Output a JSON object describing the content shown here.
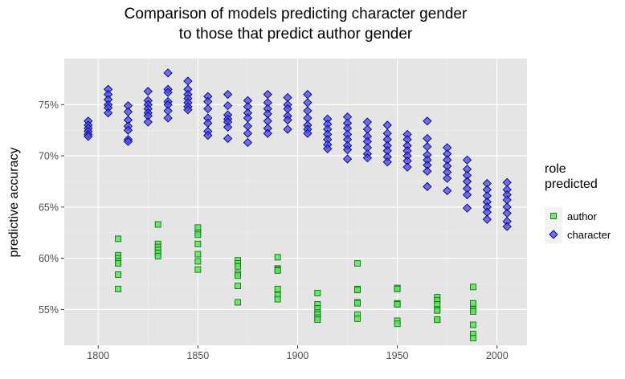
{
  "chart_data": {
    "type": "scatter",
    "title_lines": [
      "Comparison of models predicting character gender",
      "to those that predict author gender"
    ],
    "xlabel": "",
    "ylabel": "predictive accuracy",
    "xlim": [
      1783,
      2015
    ],
    "ylim": [
      51.5,
      79.5
    ],
    "x_ticks": [
      1800,
      1850,
      1900,
      1950,
      2000
    ],
    "y_ticks": [
      55,
      60,
      65,
      70,
      75
    ],
    "y_tick_labels": [
      "55%",
      "60%",
      "65%",
      "70%",
      "75%"
    ],
    "grid": true,
    "legend": {
      "title_lines": [
        "role",
        "predicted"
      ],
      "placement": "right"
    },
    "series": [
      {
        "name": "author",
        "marker": "square",
        "color": "#56e856",
        "edge": "#1a6b1a",
        "points": [
          [
            1810,
            61.9
          ],
          [
            1810,
            60.3
          ],
          [
            1810,
            60.0
          ],
          [
            1810,
            59.7
          ],
          [
            1810,
            59.5
          ],
          [
            1810,
            58.4
          ],
          [
            1810,
            57.0
          ],
          [
            1830,
            63.3
          ],
          [
            1830,
            61.4
          ],
          [
            1830,
            61.1
          ],
          [
            1830,
            60.8
          ],
          [
            1830,
            60.5
          ],
          [
            1830,
            60.2
          ],
          [
            1850,
            63.0
          ],
          [
            1850,
            62.5
          ],
          [
            1850,
            62.3
          ],
          [
            1850,
            61.4
          ],
          [
            1850,
            60.4
          ],
          [
            1850,
            59.7
          ],
          [
            1850,
            58.9
          ],
          [
            1870,
            59.8
          ],
          [
            1870,
            59.5
          ],
          [
            1870,
            59.2
          ],
          [
            1870,
            58.5
          ],
          [
            1870,
            58.3
          ],
          [
            1870,
            57.3
          ],
          [
            1870,
            55.7
          ],
          [
            1890,
            60.1
          ],
          [
            1890,
            59.0
          ],
          [
            1890,
            58.9
          ],
          [
            1890,
            58.8
          ],
          [
            1890,
            57.0
          ],
          [
            1890,
            56.4
          ],
          [
            1890,
            56.0
          ],
          [
            1910,
            56.6
          ],
          [
            1910,
            55.5
          ],
          [
            1910,
            55.1
          ],
          [
            1910,
            54.7
          ],
          [
            1910,
            54.5
          ],
          [
            1910,
            54.2
          ],
          [
            1910,
            54.0
          ],
          [
            1930,
            59.5
          ],
          [
            1930,
            57.0
          ],
          [
            1930,
            56.9
          ],
          [
            1930,
            55.7
          ],
          [
            1930,
            55.6
          ],
          [
            1930,
            54.5
          ],
          [
            1930,
            54.1
          ],
          [
            1950,
            57.1
          ],
          [
            1950,
            57.0
          ],
          [
            1950,
            55.6
          ],
          [
            1950,
            55.5
          ],
          [
            1950,
            55.5
          ],
          [
            1950,
            53.9
          ],
          [
            1950,
            53.6
          ],
          [
            1970,
            56.2
          ],
          [
            1970,
            55.9
          ],
          [
            1970,
            55.5
          ],
          [
            1970,
            55.0
          ],
          [
            1970,
            54.9
          ],
          [
            1970,
            54.0
          ],
          [
            1970,
            54.0
          ],
          [
            1988,
            57.2
          ],
          [
            1988,
            55.6
          ],
          [
            1988,
            55.0
          ],
          [
            1988,
            54.8
          ],
          [
            1988,
            53.5
          ],
          [
            1988,
            52.6
          ],
          [
            1988,
            52.2
          ]
        ]
      },
      {
        "name": "character",
        "marker": "diamond",
        "color": "#4b4bf0",
        "edge": "#00007a",
        "points": [
          [
            1795,
            73.4
          ],
          [
            1795,
            73.0
          ],
          [
            1795,
            72.7
          ],
          [
            1795,
            72.4
          ],
          [
            1795,
            72.1
          ],
          [
            1795,
            71.9
          ],
          [
            1805,
            76.5
          ],
          [
            1805,
            76.0
          ],
          [
            1805,
            75.5
          ],
          [
            1805,
            75.0
          ],
          [
            1805,
            74.7
          ],
          [
            1805,
            74.2
          ],
          [
            1815,
            74.9
          ],
          [
            1815,
            74.3
          ],
          [
            1815,
            73.5
          ],
          [
            1815,
            72.9
          ],
          [
            1815,
            72.5
          ],
          [
            1815,
            71.6
          ],
          [
            1815,
            71.4
          ],
          [
            1825,
            76.3
          ],
          [
            1825,
            75.4
          ],
          [
            1825,
            75.0
          ],
          [
            1825,
            74.6
          ],
          [
            1825,
            74.2
          ],
          [
            1825,
            73.9
          ],
          [
            1825,
            73.3
          ],
          [
            1835,
            78.1
          ],
          [
            1835,
            76.5
          ],
          [
            1835,
            76.2
          ],
          [
            1835,
            75.3
          ],
          [
            1835,
            75.0
          ],
          [
            1835,
            74.4
          ],
          [
            1835,
            73.7
          ],
          [
            1845,
            77.3
          ],
          [
            1845,
            76.5
          ],
          [
            1845,
            76.0
          ],
          [
            1845,
            75.6
          ],
          [
            1845,
            75.2
          ],
          [
            1845,
            74.8
          ],
          [
            1845,
            74.5
          ],
          [
            1855,
            75.8
          ],
          [
            1855,
            75.3
          ],
          [
            1855,
            74.6
          ],
          [
            1855,
            73.7
          ],
          [
            1855,
            73.2
          ],
          [
            1855,
            72.4
          ],
          [
            1855,
            72.0
          ],
          [
            1865,
            76.0
          ],
          [
            1865,
            74.9
          ],
          [
            1865,
            74.0
          ],
          [
            1865,
            73.6
          ],
          [
            1865,
            73.3
          ],
          [
            1865,
            72.8
          ],
          [
            1865,
            71.7
          ],
          [
            1875,
            75.4
          ],
          [
            1875,
            74.8
          ],
          [
            1875,
            74.2
          ],
          [
            1875,
            73.7
          ],
          [
            1875,
            72.9
          ],
          [
            1875,
            72.2
          ],
          [
            1875,
            71.3
          ],
          [
            1885,
            76.0
          ],
          [
            1885,
            75.2
          ],
          [
            1885,
            74.6
          ],
          [
            1885,
            74.1
          ],
          [
            1885,
            73.4
          ],
          [
            1885,
            72.7
          ],
          [
            1885,
            72.2
          ],
          [
            1895,
            75.7
          ],
          [
            1895,
            75.0
          ],
          [
            1895,
            74.6
          ],
          [
            1895,
            73.9
          ],
          [
            1895,
            73.5
          ],
          [
            1895,
            72.6
          ],
          [
            1905,
            76.0
          ],
          [
            1905,
            75.2
          ],
          [
            1905,
            74.4
          ],
          [
            1905,
            73.7
          ],
          [
            1905,
            73.0
          ],
          [
            1905,
            72.6
          ],
          [
            1905,
            72.2
          ],
          [
            1915,
            73.6
          ],
          [
            1915,
            73.1
          ],
          [
            1915,
            72.6
          ],
          [
            1915,
            72.1
          ],
          [
            1915,
            71.6
          ],
          [
            1915,
            71.1
          ],
          [
            1915,
            70.7
          ],
          [
            1925,
            73.8
          ],
          [
            1925,
            73.2
          ],
          [
            1925,
            72.7
          ],
          [
            1925,
            72.1
          ],
          [
            1925,
            71.6
          ],
          [
            1925,
            71.0
          ],
          [
            1925,
            70.6
          ],
          [
            1925,
            69.7
          ],
          [
            1935,
            73.3
          ],
          [
            1935,
            72.6
          ],
          [
            1935,
            71.9
          ],
          [
            1935,
            71.4
          ],
          [
            1935,
            70.8
          ],
          [
            1935,
            70.2
          ],
          [
            1935,
            69.8
          ],
          [
            1945,
            73.0
          ],
          [
            1945,
            72.2
          ],
          [
            1945,
            71.6
          ],
          [
            1945,
            71.0
          ],
          [
            1945,
            70.5
          ],
          [
            1945,
            69.9
          ],
          [
            1945,
            69.4
          ],
          [
            1955,
            72.1
          ],
          [
            1955,
            71.6
          ],
          [
            1955,
            71.0
          ],
          [
            1955,
            70.5
          ],
          [
            1955,
            70.0
          ],
          [
            1955,
            69.5
          ],
          [
            1955,
            68.9
          ],
          [
            1965,
            73.4
          ],
          [
            1965,
            71.7
          ],
          [
            1965,
            70.9
          ],
          [
            1965,
            70.1
          ],
          [
            1965,
            69.6
          ],
          [
            1965,
            69.1
          ],
          [
            1965,
            68.5
          ],
          [
            1965,
            67.0
          ],
          [
            1975,
            70.8
          ],
          [
            1975,
            70.2
          ],
          [
            1975,
            69.6
          ],
          [
            1975,
            69.0
          ],
          [
            1975,
            68.4
          ],
          [
            1975,
            67.8
          ],
          [
            1975,
            66.6
          ],
          [
            1985,
            69.6
          ],
          [
            1985,
            68.7
          ],
          [
            1985,
            68.1
          ],
          [
            1985,
            67.5
          ],
          [
            1985,
            66.8
          ],
          [
            1985,
            66.2
          ],
          [
            1985,
            64.9
          ],
          [
            1995,
            67.3
          ],
          [
            1995,
            66.7
          ],
          [
            1995,
            66.1
          ],
          [
            1995,
            65.5
          ],
          [
            1995,
            65.0
          ],
          [
            1995,
            64.5
          ],
          [
            1995,
            63.8
          ],
          [
            2005,
            67.4
          ],
          [
            2005,
            66.7
          ],
          [
            2005,
            66.2
          ],
          [
            2005,
            65.7
          ],
          [
            2005,
            65.0
          ],
          [
            2005,
            64.4
          ],
          [
            2005,
            63.6
          ],
          [
            2005,
            63.1
          ]
        ]
      }
    ]
  }
}
